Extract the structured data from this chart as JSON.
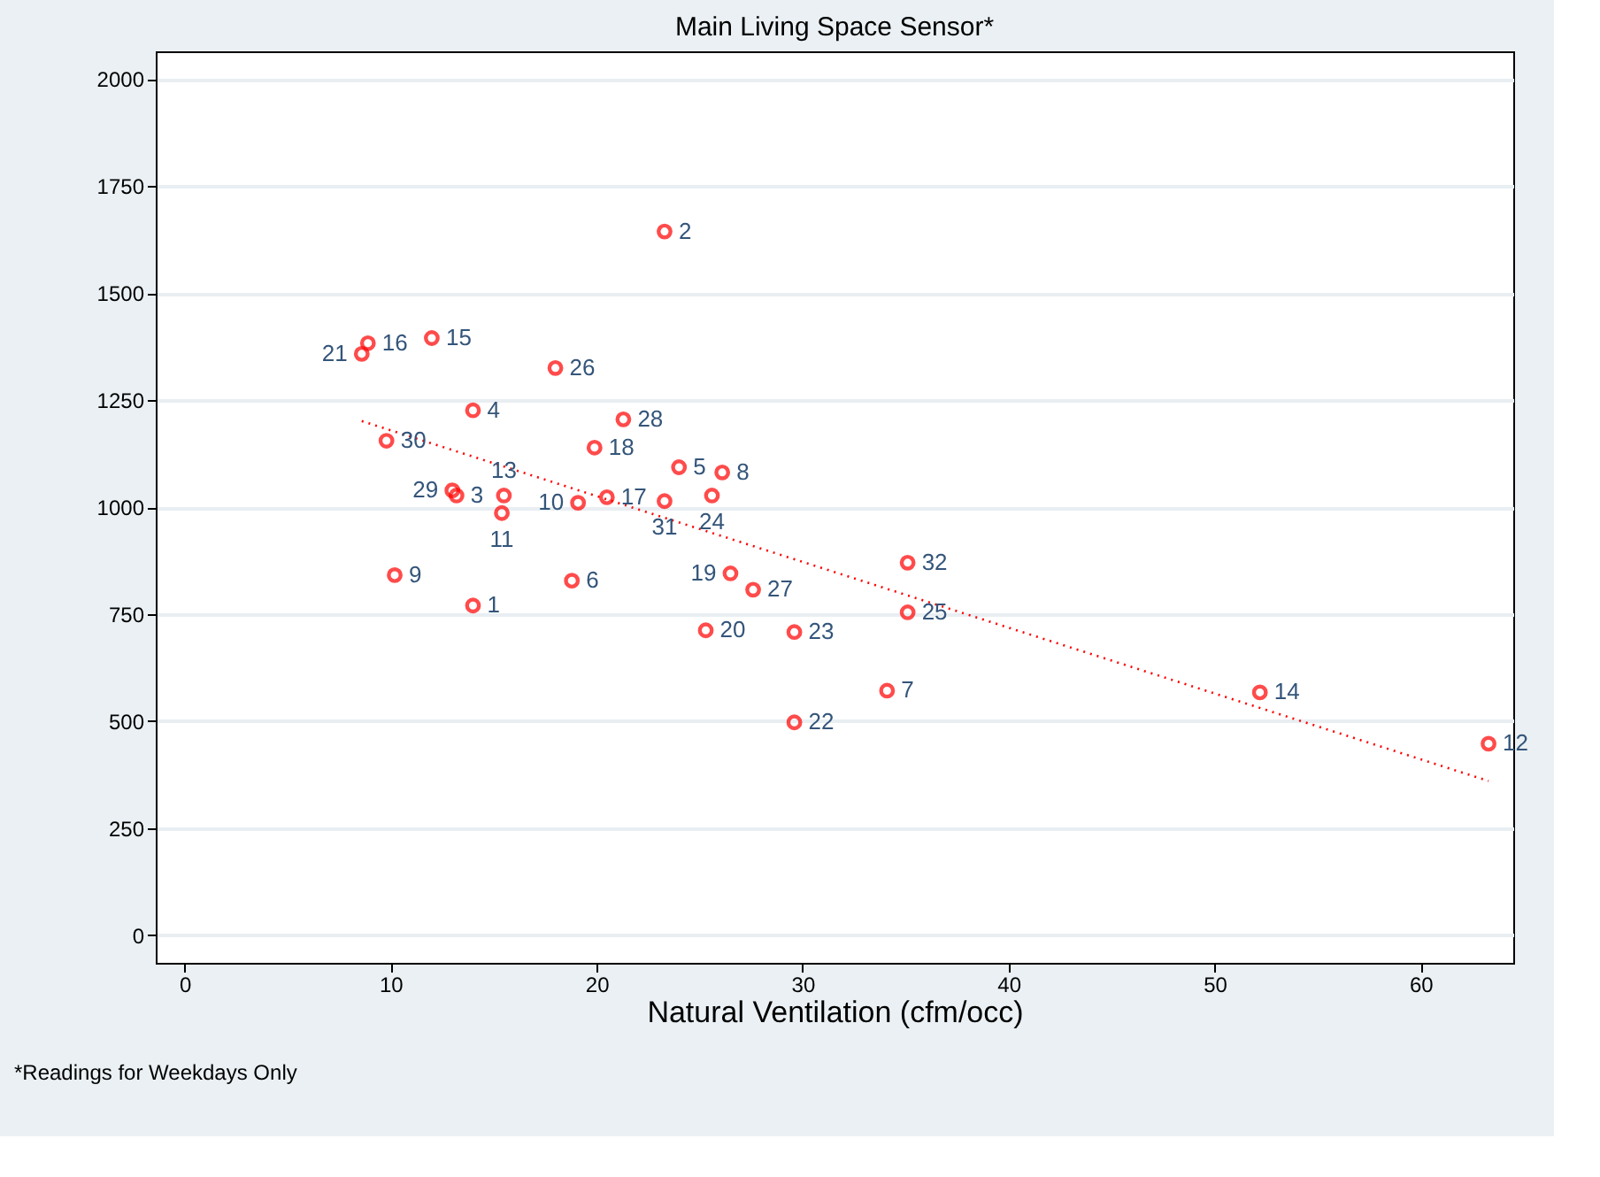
{
  "chart_data": {
    "type": "scatter",
    "title": "Main Living Space Sensor*",
    "xlabel": "Natural Ventilation (cfm/occ)",
    "annotations": [
      "*Readings for Weekdays Only",
      {
        "text": "1",
        "x": 14.0,
        "y": 770
      },
      {
        "text": "2",
        "x": 23.3,
        "y": 1644
      },
      {
        "text": "3",
        "x": 13.2,
        "y": 1027
      },
      {
        "text": "4",
        "x": 14.0,
        "y": 1226
      },
      {
        "text": "5",
        "x": 24.0,
        "y": 1093
      },
      {
        "text": "6",
        "x": 18.8,
        "y": 828
      },
      {
        "text": "7",
        "x": 34.1,
        "y": 571
      },
      {
        "text": "8",
        "x": 26.1,
        "y": 1081
      },
      {
        "text": "9",
        "x": 10.2,
        "y": 841
      },
      {
        "text": "10",
        "x": 19.1,
        "y": 1010
      },
      {
        "text": "11",
        "x": 15.4,
        "y": 986
      },
      {
        "text": "12",
        "x": 63.3,
        "y": 447
      },
      {
        "text": "13",
        "x": 15.5,
        "y": 1027
      },
      {
        "text": "14",
        "x": 52.2,
        "y": 567
      },
      {
        "text": "15",
        "x": 12.0,
        "y": 1395
      },
      {
        "text": "16",
        "x": 8.9,
        "y": 1383
      },
      {
        "text": "17",
        "x": 20.5,
        "y": 1023
      },
      {
        "text": "18",
        "x": 19.9,
        "y": 1139
      },
      {
        "text": "19",
        "x": 26.5,
        "y": 845
      },
      {
        "text": "20",
        "x": 25.3,
        "y": 712
      },
      {
        "text": "21",
        "x": 8.6,
        "y": 1358
      },
      {
        "text": "22",
        "x": 29.6,
        "y": 497
      },
      {
        "text": "23",
        "x": 29.6,
        "y": 708
      },
      {
        "text": "24",
        "x": 25.6,
        "y": 1027
      },
      {
        "text": "25",
        "x": 35.1,
        "y": 754
      },
      {
        "text": "26",
        "x": 18.0,
        "y": 1325
      },
      {
        "text": "27",
        "x": 27.6,
        "y": 807
      },
      {
        "text": "28",
        "x": 21.3,
        "y": 1205
      },
      {
        "text": "29",
        "x": 13.0,
        "y": 1039
      },
      {
        "text": "30",
        "x": 9.8,
        "y": 1155
      },
      {
        "text": "31",
        "x": 23.3,
        "y": 1014
      },
      {
        "text": "32",
        "x": 35.1,
        "y": 870
      }
    ],
    "xlim": [
      -1.4,
      64.5
    ],
    "ylim": [
      -65,
      2065
    ],
    "xticks": [
      0,
      10,
      20,
      30,
      40,
      50,
      60
    ],
    "yticks": [
      0,
      250,
      500,
      750,
      1000,
      1250,
      1500,
      1750,
      2000
    ],
    "grid": "y",
    "series": [
      {
        "color": "#ff0000",
        "marker": "circle",
        "x": [
          14.0,
          23.3,
          13.2,
          14.0,
          24.0,
          18.8,
          34.1,
          26.1,
          10.2,
          19.1,
          15.4,
          63.3,
          15.5,
          52.2,
          12.0,
          8.9,
          20.5,
          19.9,
          26.5,
          25.3,
          8.6,
          29.6,
          29.6,
          25.6,
          35.1,
          18.0,
          27.6,
          21.3,
          13.0,
          9.8,
          23.3,
          35.1
        ],
        "values": [
          770,
          1644,
          1027,
          1226,
          1093,
          828,
          571,
          1081,
          841,
          1010,
          986,
          447,
          1027,
          567,
          1395,
          1383,
          1023,
          1139,
          845,
          712,
          1358,
          497,
          708,
          1027,
          754,
          1325,
          807,
          1205,
          1039,
          1155,
          1014,
          870
        ]
      },
      {
        "type": "line",
        "color": "#ff0000",
        "line_style": "dotted",
        "x": [
          8.6,
          63.3
        ],
        "values": [
          1201,
          360
        ]
      }
    ]
  }
}
